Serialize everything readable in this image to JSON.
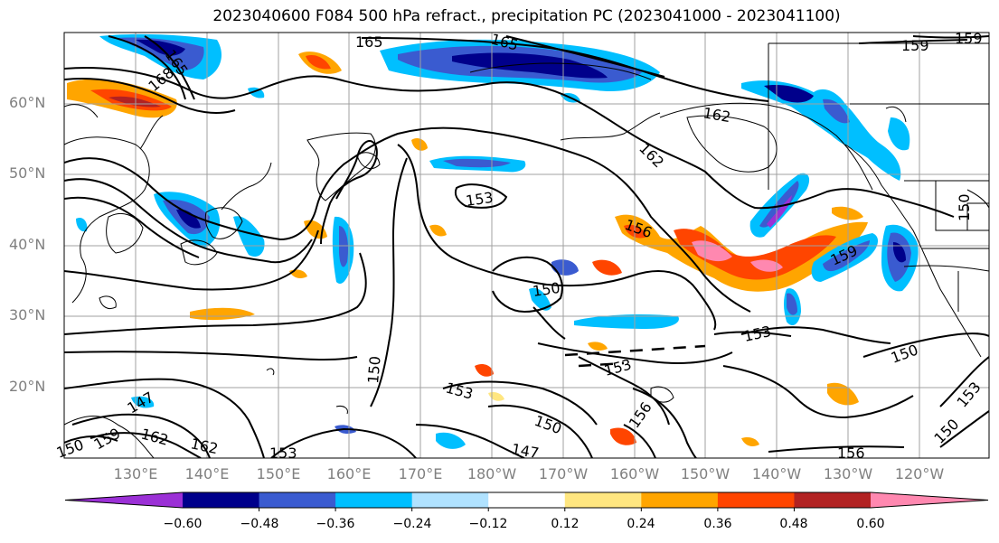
{
  "title": "2023040600 F084 500 hPa refract., precipitation PC (2023041000 - 2023041100)",
  "lat_labels": [
    "60°N",
    "50°N",
    "40°N",
    "30°N",
    "20°N"
  ],
  "lon_labels": [
    "130°E",
    "140°E",
    "150°E",
    "160°E",
    "170°E",
    "180°W",
    "170°W",
    "160°W",
    "150°W",
    "140°W",
    "130°W",
    "120°W"
  ],
  "contour_labels": [
    "165",
    "165",
    "168",
    "165",
    "159",
    "159",
    "162",
    "162",
    "153",
    "156",
    "159",
    "150",
    "153",
    "150",
    "153",
    "150",
    "153",
    "150",
    "147",
    "162",
    "162",
    "156",
    "156",
    "153",
    "150",
    "147",
    "153",
    "150",
    "159",
    "150"
  ],
  "colorbar": {
    "colors": [
      "#9b30d6",
      "#00008b",
      "#3a5bd0",
      "#00bfff",
      "#b0e2ff",
      "#ffffff",
      "#ffe680",
      "#ffa500",
      "#ff4500",
      "#b22222",
      "#ff88b0"
    ],
    "labels": [
      "−0.60",
      "−0.48",
      "−0.36",
      "−0.24",
      "−0.12",
      "0.12",
      "0.24",
      "0.36",
      "0.48",
      "0.60"
    ]
  }
}
